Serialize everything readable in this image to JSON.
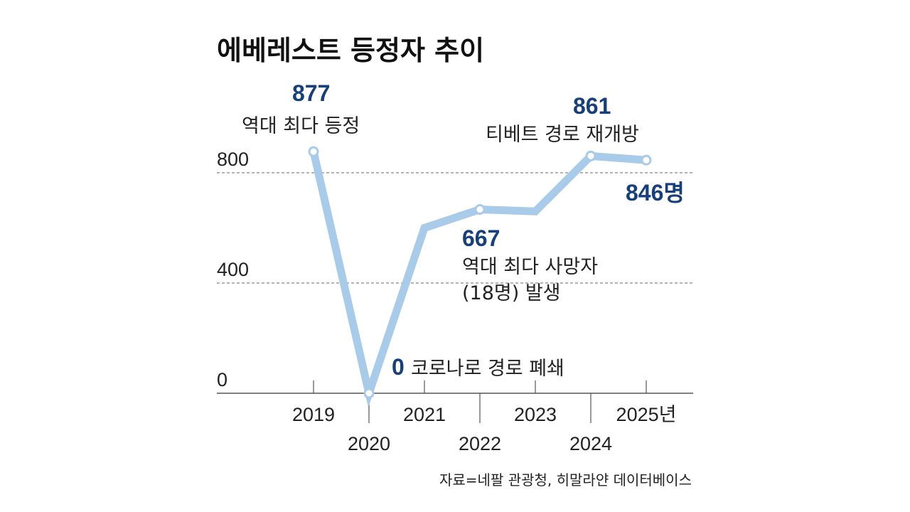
{
  "chart_data": {
    "type": "line",
    "title": "에베레스트 등정자 추이",
    "x": [
      "2019",
      "2020",
      "2021",
      "2022",
      "2023",
      "2024",
      "2025년"
    ],
    "series": [
      {
        "name": "등정자",
        "values": [
          877,
          0,
          600,
          667,
          660,
          861,
          846
        ]
      }
    ],
    "y_ticks": [
      "0",
      "400",
      "800"
    ],
    "ylim": [
      0,
      900
    ],
    "grid": "dashed horizontal at 400 and 800",
    "labels": {
      "p2019_value": "877",
      "p2019_note": "역대 최다 등정",
      "p2020_value": "0",
      "p2020_note": "코로나로 경로 폐쇄",
      "p2022_value": "667",
      "p2022_note1": "역대 최다 사망자",
      "p2022_note2": "(18명) 발생",
      "p2024_value": "861",
      "p2024_note": "티베트 경로 재개방",
      "p2025_value": "846명"
    },
    "source": "자료=네팔 관광청, 히말라얀 데이터베이스",
    "colors": {
      "line": "#a8cbe9",
      "value": "#173f7c",
      "grid": "#888888"
    }
  }
}
